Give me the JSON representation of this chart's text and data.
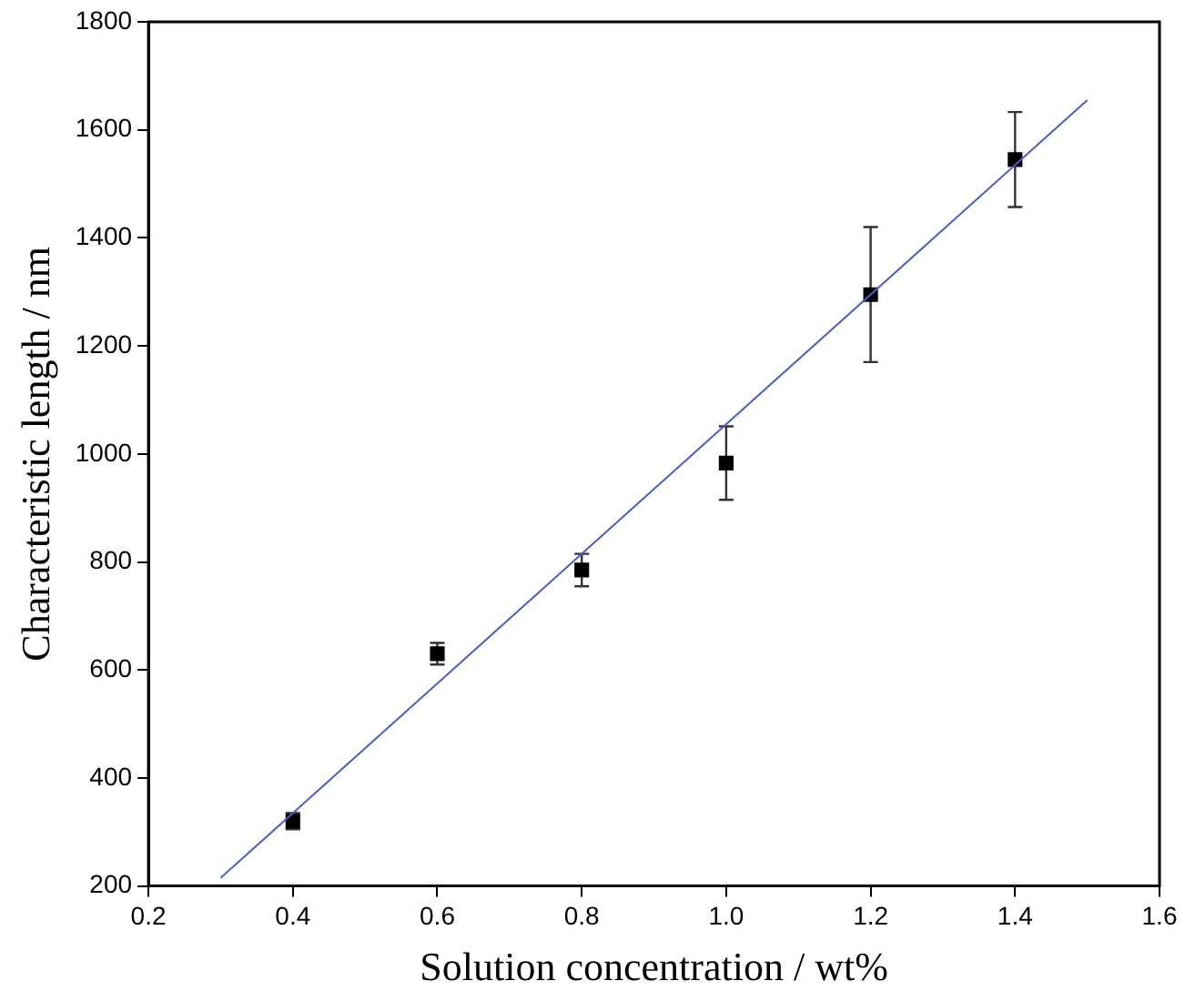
{
  "chart_data": {
    "type": "scatter",
    "xlabel": "Solution concentration / wt%",
    "ylabel": "Characteristic length / nm",
    "xlim": [
      0.2,
      1.6
    ],
    "xticks": [
      0.2,
      0.4,
      0.6,
      0.8,
      {
        "value": 1,
        "label": "1.0"
      },
      1.2,
      1.4,
      1.6
    ],
    "ylim": [
      200,
      1800
    ],
    "yticks": [
      200,
      400,
      600,
      800,
      1000,
      1200,
      1400,
      1600,
      1800
    ],
    "grid": false,
    "legend": false,
    "marker": "square",
    "series": [
      {
        "color": "#000000",
        "x": [
          0.4,
          0.6,
          0.8,
          1.0,
          1.2,
          1.4
        ],
        "values": [
          320,
          630,
          785,
          983,
          1295,
          1545
        ],
        "errors": [
          15,
          20,
          30,
          68,
          125,
          88
        ]
      },
      {
        "type": "line",
        "color": "#4a5fc1",
        "x": [
          0.3,
          1.5
        ],
        "values": [
          215,
          1655
        ],
        "marker": "none"
      }
    ]
  }
}
